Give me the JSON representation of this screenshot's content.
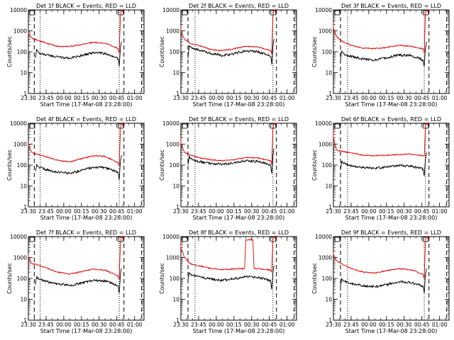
{
  "colors": {
    "events": "#000000",
    "lld": "#e00000",
    "background": "#ffffff"
  },
  "chart_data": [
    {
      "type": "line",
      "title": "Det 1f BLACK = Events, RED = LLD",
      "xlabel": "Start Time (17-Mar-08 23:28:00)",
      "ylabel": "Counts/sec",
      "y_scale": "log",
      "ylim": [
        1,
        10000
      ],
      "xlim": [
        "23:30",
        "01:08"
      ],
      "xticks": [
        "23:30",
        "23:45",
        "00:00",
        "00:15",
        "00:30",
        "00:45",
        "01:00"
      ],
      "yticks": [
        "1",
        "10",
        "100",
        "1000",
        "10000"
      ],
      "dashed_markers": [
        "23:35",
        "00:51",
        "01:06"
      ],
      "dotted_markers": [
        "23:40",
        "00:47"
      ],
      "series": [
        {
          "color": "#e00000",
          "x": [
            "23:28",
            "23:33",
            "23:38",
            "23:45",
            "23:55",
            "00:05",
            "00:15",
            "00:25",
            "00:35",
            "00:42",
            "00:46",
            "00:47",
            "00:48",
            "00:49",
            "00:50",
            "00:51",
            "00:52"
          ],
          "values": [
            900,
            450,
            350,
            260,
            180,
            180,
            220,
            280,
            260,
            180,
            140,
            90,
            5000,
            10000,
            10000,
            10000,
            10000
          ]
        },
        {
          "color": "#000000",
          "x": [
            "23:36",
            "23:37",
            "23:38",
            "23:40",
            "23:45",
            "23:55",
            "00:05",
            "00:15",
            "00:25",
            "00:35",
            "00:42",
            "00:46",
            "00:47",
            "00:48",
            "00:49"
          ],
          "values": [
            50,
            130,
            100,
            85,
            70,
            55,
            50,
            65,
            90,
            80,
            60,
            45,
            20,
            150,
            300
          ]
        }
      ]
    },
    {
      "type": "line",
      "title": "Det 2f BLACK = Events, RED = LLD",
      "xlabel": "Start Time (17-Mar-08 23:28:00)",
      "ylabel": "Counts/sec",
      "y_scale": "log",
      "ylim": [
        1,
        10000
      ],
      "xlim": [
        "23:30",
        "01:08"
      ],
      "xticks": [
        "23:30",
        "23:45",
        "00:00",
        "00:15",
        "00:30",
        "00:45",
        "01:00"
      ],
      "yticks": [
        "1",
        "10",
        "100",
        "1000",
        "10000"
      ],
      "dashed_markers": [
        "23:36",
        "00:51",
        "01:06"
      ],
      "dotted_markers": [
        "23:42",
        "00:48"
      ],
      "series": [
        {
          "color": "#e00000",
          "x": [
            "23:28",
            "23:33",
            "23:38",
            "23:45",
            "23:55",
            "00:05",
            "00:15",
            "00:25",
            "00:35",
            "00:42",
            "00:46",
            "00:47",
            "00:48",
            "00:49",
            "00:50",
            "00:52"
          ],
          "values": [
            1500,
            400,
            250,
            200,
            130,
            110,
            140,
            180,
            170,
            130,
            120,
            80,
            6000,
            10000,
            10000,
            10000
          ]
        },
        {
          "color": "#000000",
          "x": [
            "23:36",
            "23:37",
            "23:38",
            "23:40",
            "23:45",
            "23:55",
            "00:05",
            "00:15",
            "00:25",
            "00:35",
            "00:42",
            "00:46",
            "00:47",
            "00:48",
            "00:49"
          ],
          "values": [
            50,
            200,
            170,
            140,
            120,
            85,
            65,
            80,
            110,
            100,
            75,
            60,
            25,
            200,
            400
          ]
        }
      ]
    },
    {
      "type": "line",
      "title": "Det 3f BLACK = Events, RED = LLD",
      "xlabel": "Start Time (17-Mar-08 23:28:00)",
      "ylabel": "Counts/sec",
      "y_scale": "log",
      "ylim": [
        1,
        10000
      ],
      "xlim": [
        "23:30",
        "01:08"
      ],
      "xticks": [
        "23:30",
        "23:45",
        "00:00",
        "00:15",
        "00:30",
        "00:45",
        "01:00"
      ],
      "yticks": [
        "1",
        "10",
        "100",
        "1000",
        "10000"
      ],
      "dashed_markers": [
        "23:36",
        "00:51",
        "01:06"
      ],
      "dotted_markers": [
        "23:42",
        "00:47"
      ],
      "series": [
        {
          "color": "#e00000",
          "x": [
            "23:28",
            "23:33",
            "23:38",
            "23:45",
            "23:55",
            "00:05",
            "00:15",
            "00:25",
            "00:35",
            "00:42",
            "00:46",
            "00:47",
            "00:48",
            "00:49",
            "00:50",
            "00:52"
          ],
          "values": [
            2500,
            500,
            300,
            200,
            150,
            140,
            160,
            200,
            190,
            150,
            140,
            90,
            7000,
            10000,
            10000,
            10000
          ]
        },
        {
          "color": "#000000",
          "x": [
            "23:36",
            "23:37",
            "23:38",
            "23:40",
            "23:45",
            "23:55",
            "00:05",
            "00:15",
            "00:25",
            "00:35",
            "00:42",
            "00:46",
            "00:47",
            "00:48",
            "00:49"
          ],
          "values": [
            40,
            110,
            90,
            70,
            60,
            45,
            40,
            50,
            70,
            65,
            50,
            40,
            20,
            150,
            300
          ]
        }
      ]
    },
    {
      "type": "line",
      "title": "Det 4f BLACK = Events, RED = LLD",
      "xlabel": "Start Time (17-Mar-08 23:28:00)",
      "ylabel": "Counts/sec",
      "y_scale": "log",
      "ylim": [
        1,
        10000
      ],
      "xlim": [
        "23:30",
        "01:08"
      ],
      "xticks": [
        "23:30",
        "23:45",
        "00:00",
        "00:15",
        "00:30",
        "00:45",
        "01:00"
      ],
      "yticks": [
        "1",
        "10",
        "100",
        "1000",
        "10000"
      ],
      "dashed_markers": [
        "23:35",
        "00:51",
        "01:06"
      ],
      "dotted_markers": [
        "23:40",
        "00:47"
      ],
      "series": [
        {
          "color": "#e00000",
          "x": [
            "23:28",
            "23:33",
            "23:38",
            "23:45",
            "23:55",
            "00:05",
            "00:15",
            "00:25",
            "00:35",
            "00:42",
            "00:46",
            "00:47",
            "00:48",
            "00:49",
            "00:50",
            "00:52"
          ],
          "values": [
            1200,
            400,
            320,
            250,
            170,
            140,
            200,
            280,
            260,
            170,
            130,
            90,
            5000,
            10000,
            10000,
            10000
          ]
        },
        {
          "color": "#000000",
          "x": [
            "23:36",
            "23:37",
            "23:38",
            "23:40",
            "23:45",
            "23:55",
            "00:05",
            "00:15",
            "00:25",
            "00:35",
            "00:42",
            "00:46",
            "00:47",
            "00:48",
            "00:49"
          ],
          "values": [
            50,
            110,
            90,
            75,
            60,
            45,
            40,
            55,
            80,
            75,
            55,
            45,
            20,
            150,
            300
          ]
        }
      ]
    },
    {
      "type": "line",
      "title": "Det 5f BLACK = Events, RED = LLD",
      "xlabel": "Start Time (17-Mar-08 23:28:00)",
      "ylabel": "Counts/sec",
      "y_scale": "log",
      "ylim": [
        1,
        10000
      ],
      "xlim": [
        "23:30",
        "01:08"
      ],
      "xticks": [
        "23:30",
        "23:45",
        "00:00",
        "00:15",
        "00:30",
        "00:45",
        "01:00"
      ],
      "yticks": [
        "1",
        "10",
        "100",
        "1000",
        "10000"
      ],
      "dashed_markers": [
        "23:36",
        "00:51",
        "01:06"
      ],
      "dotted_markers": [
        "23:42",
        "00:48"
      ],
      "series": [
        {
          "color": "#e00000",
          "x": [
            "23:28",
            "23:33",
            "23:38",
            "23:45",
            "23:55",
            "00:05",
            "00:15",
            "00:25",
            "00:35",
            "00:42",
            "00:46",
            "00:47",
            "00:48",
            "00:49",
            "00:50",
            "00:52"
          ],
          "values": [
            2000,
            400,
            300,
            230,
            180,
            160,
            180,
            230,
            220,
            180,
            170,
            110,
            6000,
            10000,
            10000,
            10000
          ]
        },
        {
          "color": "#000000",
          "x": [
            "23:36",
            "23:37",
            "23:38",
            "23:40",
            "23:45",
            "23:55",
            "00:05",
            "00:15",
            "00:25",
            "00:35",
            "00:42",
            "00:46",
            "00:47",
            "00:48",
            "00:49"
          ],
          "values": [
            100,
            260,
            220,
            180,
            150,
            120,
            110,
            130,
            160,
            150,
            120,
            100,
            40,
            300,
            600
          ]
        }
      ]
    },
    {
      "type": "line",
      "title": "Det 6f BLACK = Events, RED = LLD",
      "xlabel": "Start Time (17-Mar-08 23:28:00)",
      "ylabel": "Counts/sec",
      "y_scale": "log",
      "ylim": [
        1,
        10000
      ],
      "xlim": [
        "23:30",
        "01:08"
      ],
      "xticks": [
        "23:30",
        "23:45",
        "00:00",
        "00:15",
        "00:30",
        "00:45",
        "01:00"
      ],
      "yticks": [
        "1",
        "10",
        "100",
        "1000",
        "10000"
      ],
      "dashed_markers": [
        "23:36",
        "00:51",
        "01:06"
      ],
      "dotted_markers": [
        "23:42",
        "00:48"
      ],
      "series": [
        {
          "color": "#e00000",
          "x": [
            "23:28",
            "23:33",
            "23:38",
            "23:45",
            "23:55",
            "00:05",
            "00:15",
            "00:25",
            "00:35",
            "00:42",
            "00:46",
            "00:47",
            "00:48",
            "00:49",
            "00:50",
            "00:52"
          ],
          "values": [
            5000,
            500,
            450,
            380,
            300,
            280,
            290,
            320,
            330,
            300,
            280,
            260,
            8000,
            10000,
            10000,
            10000
          ]
        },
        {
          "color": "#000000",
          "x": [
            "23:36",
            "23:37",
            "23:38",
            "23:40",
            "23:45",
            "23:55",
            "00:05",
            "00:15",
            "00:25",
            "00:35",
            "00:42",
            "00:46",
            "00:47",
            "00:48",
            "00:49"
          ],
          "values": [
            60,
            150,
            130,
            110,
            90,
            75,
            70,
            80,
            95,
            90,
            75,
            65,
            30,
            200,
            400
          ]
        }
      ]
    },
    {
      "type": "line",
      "title": "Det 7f BLACK = Events, RED = LLD",
      "xlabel": "Start Time (17-Mar-08 23:28:00)",
      "ylabel": "Counts/sec",
      "y_scale": "log",
      "ylim": [
        1,
        10000
      ],
      "xlim": [
        "23:30",
        "01:08"
      ],
      "xticks": [
        "23:30",
        "23:45",
        "00:00",
        "00:15",
        "00:30",
        "00:45",
        "01:00"
      ],
      "yticks": [
        "1",
        "10",
        "100",
        "1000",
        "10000"
      ],
      "dashed_markers": [
        "23:35",
        "00:51",
        "01:06"
      ],
      "dotted_markers": [
        "23:40",
        "00:47"
      ],
      "series": [
        {
          "color": "#e00000",
          "x": [
            "23:28",
            "23:33",
            "23:38",
            "23:45",
            "23:55",
            "00:05",
            "00:15",
            "00:25",
            "00:35",
            "00:42",
            "00:46",
            "00:47",
            "00:48",
            "00:49",
            "00:50",
            "00:52"
          ],
          "values": [
            1500,
            500,
            450,
            320,
            200,
            160,
            210,
            280,
            250,
            170,
            130,
            90,
            5000,
            10000,
            10000,
            10000
          ]
        },
        {
          "color": "#000000",
          "x": [
            "23:36",
            "23:37",
            "23:38",
            "23:40",
            "23:45",
            "23:55",
            "00:05",
            "00:15",
            "00:25",
            "00:35",
            "00:42",
            "00:46",
            "00:47",
            "00:48",
            "00:49"
          ],
          "values": [
            50,
            120,
            100,
            90,
            70,
            55,
            45,
            60,
            80,
            75,
            55,
            45,
            20,
            150,
            300
          ]
        }
      ]
    },
    {
      "type": "line",
      "title": "Det 8f BLACK = Events, RED = LLD",
      "xlabel": "Start Time (17-Mar-08 23:28:00)",
      "ylabel": "Counts/sec",
      "y_scale": "log",
      "ylim": [
        1,
        10000
      ],
      "xlim": [
        "23:30",
        "01:08"
      ],
      "xticks": [
        "23:30",
        "23:45",
        "00:00",
        "00:15",
        "00:30",
        "00:45",
        "01:00"
      ],
      "yticks": [
        "1",
        "10",
        "100",
        "1000",
        "10000"
      ],
      "dashed_markers": [
        "23:36",
        "00:51",
        "01:06"
      ],
      "dotted_markers": [
        "23:42",
        "00:48"
      ],
      "series": [
        {
          "color": "#e00000",
          "x": [
            "23:28",
            "23:33",
            "23:38",
            "23:45",
            "23:55",
            "00:05",
            "00:15",
            "00:24",
            "00:25",
            "00:31",
            "00:32",
            "00:35",
            "00:42",
            "00:46",
            "00:47",
            "00:48",
            "00:49",
            "00:50",
            "00:52"
          ],
          "values": [
            6000,
            1000,
            500,
            400,
            300,
            260,
            280,
            300,
            7000,
            7000,
            300,
            290,
            270,
            250,
            200,
            8000,
            10000,
            10000,
            10000
          ]
        },
        {
          "color": "#000000",
          "x": [
            "23:36",
            "23:37",
            "23:38",
            "23:40",
            "23:45",
            "23:55",
            "00:05",
            "00:15",
            "00:25",
            "00:35",
            "00:42",
            "00:46",
            "00:47",
            "00:48",
            "00:49"
          ],
          "values": [
            80,
            190,
            160,
            140,
            120,
            95,
            80,
            95,
            120,
            110,
            90,
            75,
            30,
            200,
            400
          ]
        }
      ]
    },
    {
      "type": "line",
      "title": "Det 9f BLACK = Events, RED = LLD",
      "xlabel": "Start Time (17-Mar-08 23:28:00)",
      "ylabel": "Counts/sec",
      "y_scale": "log",
      "ylim": [
        1,
        10000
      ],
      "xlim": [
        "23:30",
        "01:08"
      ],
      "xticks": [
        "23:30",
        "23:45",
        "00:00",
        "00:15",
        "00:30",
        "00:45",
        "01:00"
      ],
      "yticks": [
        "1",
        "10",
        "100",
        "1000",
        "10000"
      ],
      "dashed_markers": [
        "23:36",
        "00:51",
        "01:06"
      ],
      "dotted_markers": [
        "23:42",
        "00:47"
      ],
      "series": [
        {
          "color": "#e00000",
          "x": [
            "23:28",
            "23:33",
            "23:38",
            "23:45",
            "23:55",
            "00:05",
            "00:15",
            "00:25",
            "00:35",
            "00:42",
            "00:46",
            "00:47",
            "00:48",
            "00:49",
            "00:50",
            "00:52"
          ],
          "values": [
            2000,
            700,
            450,
            300,
            200,
            180,
            230,
            290,
            270,
            190,
            150,
            100,
            6000,
            10000,
            10000,
            10000
          ]
        },
        {
          "color": "#000000",
          "x": [
            "23:36",
            "23:37",
            "23:38",
            "23:40",
            "23:45",
            "23:55",
            "00:05",
            "00:15",
            "00:25",
            "00:35",
            "00:42",
            "00:46",
            "00:47",
            "00:48",
            "00:49"
          ],
          "values": [
            40,
            100,
            85,
            70,
            55,
            45,
            40,
            50,
            70,
            65,
            50,
            40,
            20,
            150,
            300
          ]
        }
      ]
    }
  ]
}
